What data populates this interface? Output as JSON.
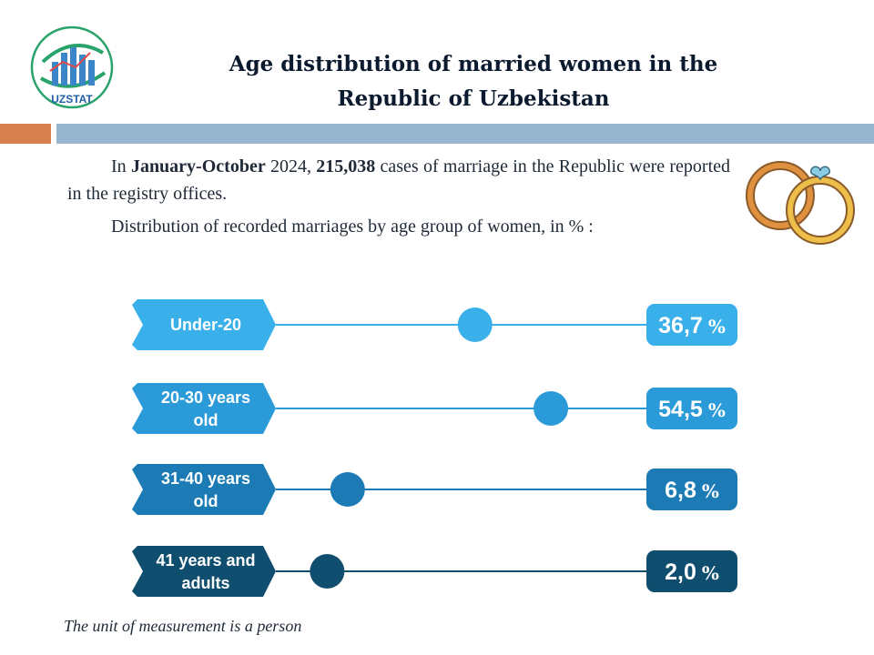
{
  "header": {
    "logo_text": "UZSTAT",
    "title_line1": "Age distribution of married women in the",
    "title_line2": "Republic of Uzbekistan"
  },
  "intro": {
    "p1_prefix": "In ",
    "p1_period": "January-October",
    "p1_year": " 2024, ",
    "p1_count": "215,038",
    "p1_suffix": " cases of marriage in the Republic were reported in the registry offices.",
    "p2": "Distribution of recorded marriages by age group of women, in % :"
  },
  "footnote": "The unit of measurement is a person",
  "colors": {
    "accent_orange": "#d9804f",
    "accent_blue_bar": "#98b5cf",
    "series": [
      "#3ab0ea",
      "#2b9ad8",
      "#1c7bb5",
      "#0f4e6e"
    ],
    "ring_orange": "#e0913f",
    "ring_gold": "#edbf4a",
    "heart": "#8ccde6"
  },
  "chart_data": {
    "type": "bar",
    "title": "",
    "categories": [
      [
        "Under-20"
      ],
      [
        "20-30 years",
        "old"
      ],
      [
        "31-40 years",
        "old"
      ],
      [
        "41 years and",
        "adults"
      ]
    ],
    "values": [
      36.7,
      54.5,
      6.8,
      2.0
    ],
    "value_labels": [
      "36,7",
      "54,5",
      "6,8",
      "2,0"
    ],
    "unit": "%",
    "xlim": [
      0,
      100
    ]
  }
}
